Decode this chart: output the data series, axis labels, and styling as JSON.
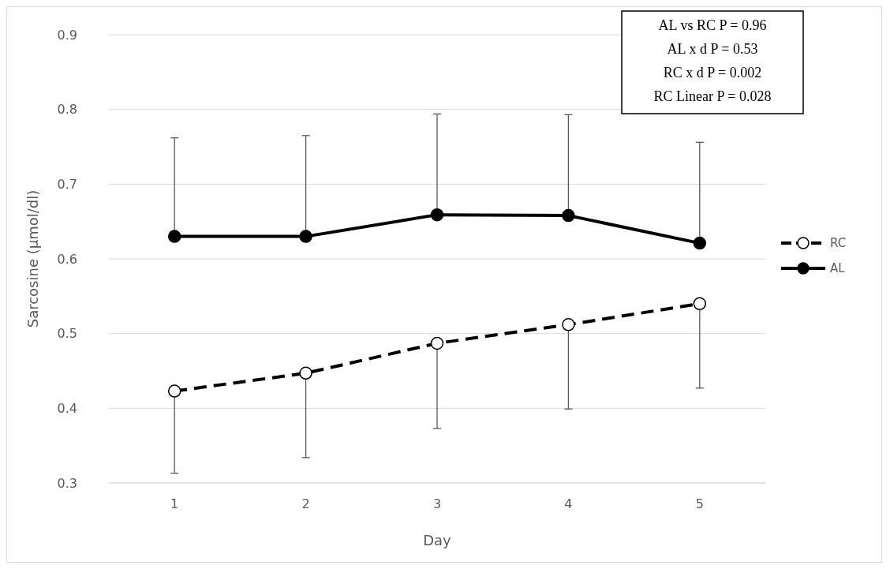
{
  "chart_data": {
    "type": "line",
    "xlabel": "Day",
    "ylabel": "Sarcosine (µmol/dl)",
    "categories": [
      "1",
      "2",
      "3",
      "4",
      "5"
    ],
    "ylim": [
      0.3,
      0.9
    ],
    "yticks": [
      0.3,
      0.4,
      0.5,
      0.6,
      0.7,
      0.8,
      0.9
    ],
    "grid": "y",
    "legend": "right",
    "marker": "circle",
    "series": [
      {
        "name": "RC",
        "color": "#000000",
        "line_style": "dashed",
        "values": [
          0.423,
          0.447,
          0.487,
          0.512,
          0.54
        ],
        "errors": [
          [
            0.313,
            0.423
          ],
          [
            0.334,
            0.447
          ],
          [
            0.373,
            0.487
          ],
          [
            0.399,
            0.512
          ],
          [
            0.427,
            0.54
          ]
        ]
      },
      {
        "name": "AL",
        "color": "#000000",
        "line_style": "solid",
        "values": [
          0.63,
          0.63,
          0.659,
          0.658,
          0.621
        ],
        "errors": [
          [
            0.63,
            0.762
          ],
          [
            0.63,
            0.765
          ],
          [
            0.659,
            0.794
          ],
          [
            0.658,
            0.793
          ],
          [
            0.621,
            0.756
          ]
        ]
      }
    ],
    "annotations": [
      "AL vs RC P = 0.96",
      "AL x d P = 0.53",
      "RC x d P = 0.002",
      "RC Linear P = 0.028"
    ]
  }
}
